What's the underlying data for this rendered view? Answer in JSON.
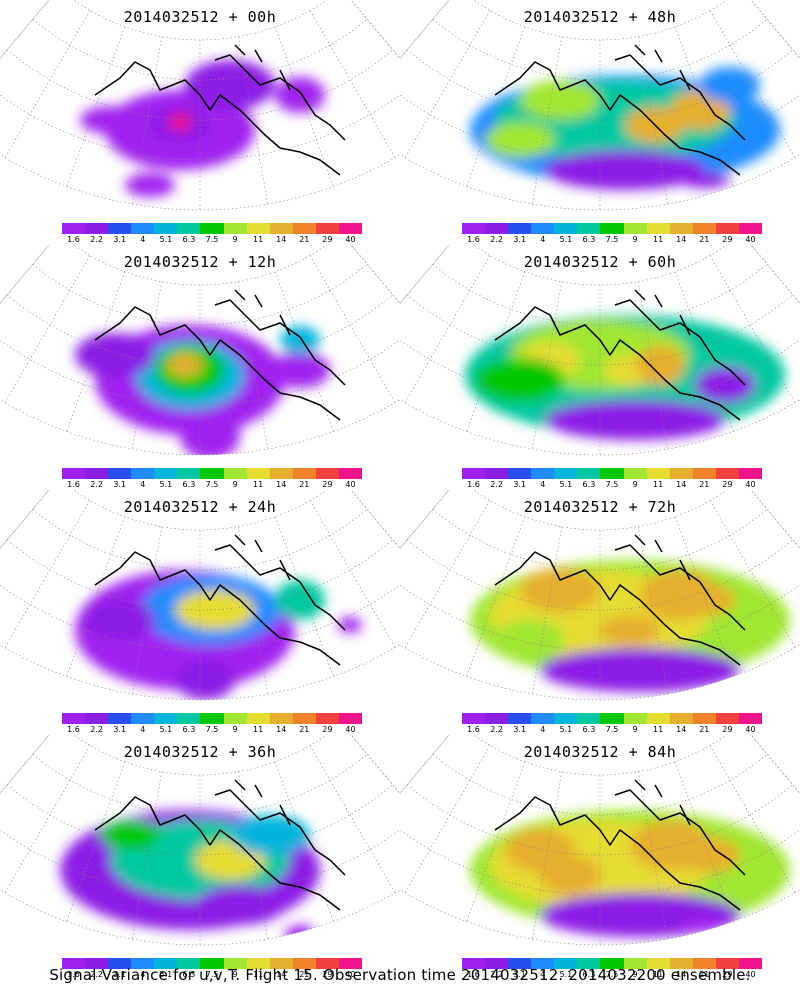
{
  "caption": "Signal Variance for u,v,T. Flight 15. Observation time 2014032512. 2014032200 ensemble.",
  "colorbar": {
    "labels": [
      "1.6",
      "2.2",
      "3.1",
      "4",
      "5.1",
      "6.3",
      "7.5",
      "9",
      "11",
      "14",
      "21",
      "29",
      "40"
    ],
    "colors": [
      "#a020f0",
      "#8c1ee6",
      "#2850f0",
      "#1e8cff",
      "#00b4dc",
      "#00c8a0",
      "#00c800",
      "#a0e632",
      "#e6dc32",
      "#e6af2d",
      "#f08228",
      "#f04040",
      "#f0148c"
    ]
  },
  "chart_data": [
    {
      "type": "heatmap",
      "title": "2014032512 + 00h",
      "lead_hours": 0,
      "color_scale": [
        1.6,
        2.2,
        3.1,
        4,
        5.1,
        6.3,
        7.5,
        9,
        11,
        14,
        21,
        29,
        40
      ],
      "max_level": 40,
      "description": "mostly below 1.6 with purple regions over Alaska / NE Pacific; peak (>29) near Gulf of Alaska"
    },
    {
      "type": "heatmap",
      "title": "2014032512 + 48h",
      "lead_hours": 48,
      "color_scale": [
        1.6,
        2.2,
        3.1,
        4,
        5.1,
        6.3,
        7.5,
        9,
        11,
        14,
        21,
        29,
        40
      ],
      "max_level": 14
    },
    {
      "type": "heatmap",
      "title": "2014032512 + 12h",
      "lead_hours": 12,
      "color_scale": [
        1.6,
        2.2,
        3.1,
        4,
        5.1,
        6.3,
        7.5,
        9,
        11,
        14,
        21,
        29,
        40
      ],
      "max_level": 14
    },
    {
      "type": "heatmap",
      "title": "2014032512 + 60h",
      "lead_hours": 60,
      "color_scale": [
        1.6,
        2.2,
        3.1,
        4,
        5.1,
        6.3,
        7.5,
        9,
        11,
        14,
        21,
        29,
        40
      ],
      "max_level": 14
    },
    {
      "type": "heatmap",
      "title": "2014032512 + 24h",
      "lead_hours": 24,
      "color_scale": [
        1.6,
        2.2,
        3.1,
        4,
        5.1,
        6.3,
        7.5,
        9,
        11,
        14,
        21,
        29,
        40
      ],
      "max_level": 14
    },
    {
      "type": "heatmap",
      "title": "2014032512 + 72h",
      "lead_hours": 72,
      "color_scale": [
        1.6,
        2.2,
        3.1,
        4,
        5.1,
        6.3,
        7.5,
        9,
        11,
        14,
        21,
        29,
        40
      ],
      "max_level": 14
    },
    {
      "type": "heatmap",
      "title": "2014032512 + 36h",
      "lead_hours": 36,
      "color_scale": [
        1.6,
        2.2,
        3.1,
        4,
        5.1,
        6.3,
        7.5,
        9,
        11,
        14,
        21,
        29,
        40
      ],
      "max_level": 11
    },
    {
      "type": "heatmap",
      "title": "2014032512 + 84h",
      "lead_hours": 84,
      "color_scale": [
        1.6,
        2.2,
        3.1,
        4,
        5.1,
        6.3,
        7.5,
        9,
        11,
        14,
        21,
        29,
        40
      ],
      "max_level": 14
    }
  ]
}
